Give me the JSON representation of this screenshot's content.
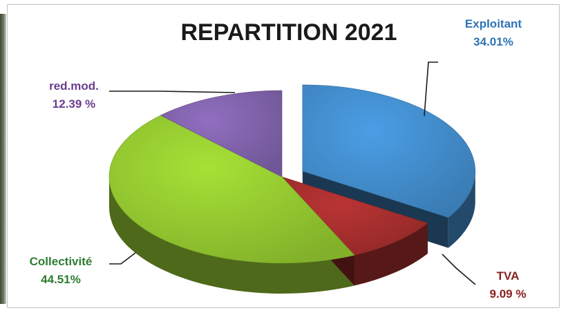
{
  "chart_data": {
    "type": "pie",
    "title": "REPARTITION 2021",
    "slices": [
      {
        "name": "Exploitant",
        "value": 34.01,
        "label": "34.01%",
        "color": "#3f86c2"
      },
      {
        "name": "TVA",
        "value": 9.09,
        "label": "9.09 %",
        "color": "#9e2c2c"
      },
      {
        "name": "Collectivité",
        "value": 44.51,
        "label": "44.51%",
        "color": "#8dbf2e"
      },
      {
        "name": "red.mod.",
        "value": 12.39,
        "label": "12.39 %",
        "color": "#7a5ea3"
      }
    ],
    "label_colors": {
      "Exploitant": "#2e74b5",
      "TVA": "#8b1d1d",
      "Collectivité": "#2e7d32",
      "red.mod.": "#6a3d8f"
    },
    "exploded": [
      "Exploitant"
    ],
    "three_d": true
  }
}
